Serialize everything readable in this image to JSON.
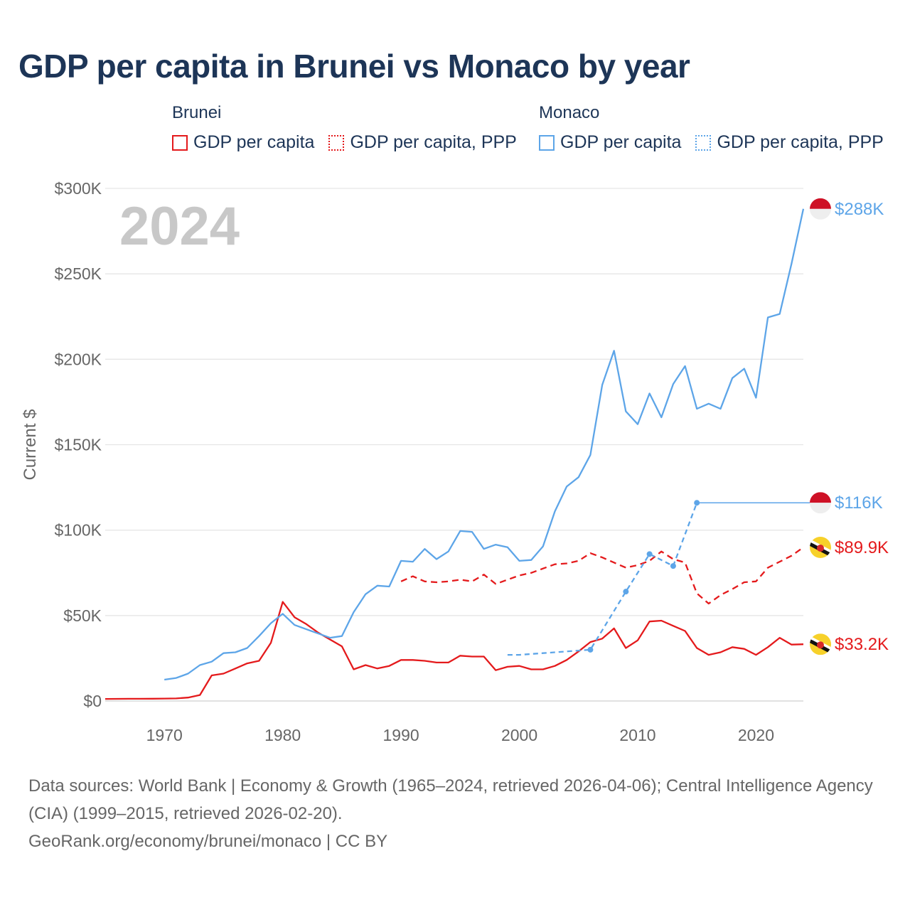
{
  "title": "GDP per capita in Brunei vs Monaco by year",
  "legend": {
    "groups": [
      {
        "country": "Brunei",
        "items": [
          {
            "label": "GDP per capita",
            "color": "#e41a1c",
            "style": "solid"
          },
          {
            "label": "GDP per capita, PPP",
            "color": "#e41a1c",
            "style": "dotted"
          }
        ]
      },
      {
        "country": "Monaco",
        "items": [
          {
            "label": "GDP per capita",
            "color": "#5da5e8",
            "style": "solid"
          },
          {
            "label": "GDP per capita, PPP",
            "color": "#5da5e8",
            "style": "dotted"
          }
        ]
      }
    ]
  },
  "colors": {
    "brunei": "#e41a1c",
    "monaco": "#5da5e8",
    "grid": "#e6e6e6",
    "text": "#1d3557",
    "axis": "#666666",
    "year_watermark": "#c8c8c8"
  },
  "footer": {
    "line1": "Data sources: World Bank | Economy & Growth (1965–2024, retrieved 2026-04-06); Central Intelligence Agency (CIA) (1999–2015, retrieved 2026-02-20).",
    "line2": "GeoRank.org/economy/brunei/monaco | CC BY"
  },
  "chart_data": {
    "type": "line",
    "year_watermark": "2024",
    "ylabel": "Current $",
    "xlabel": "",
    "xlim": [
      1965,
      2024
    ],
    "ylim": [
      0,
      300000
    ],
    "x_ticks": [
      1970,
      1980,
      1990,
      2000,
      2010,
      2020
    ],
    "y_ticks": [
      0,
      50000,
      100000,
      150000,
      200000,
      250000,
      300000
    ],
    "y_tick_labels": [
      "$0",
      "$50K",
      "$100K",
      "$150K",
      "$200K",
      "$250K",
      "$300K"
    ],
    "series": [
      {
        "name": "Brunei GDP per capita",
        "country": "Brunei",
        "color": "#e41a1c",
        "dash": "solid",
        "end_label": "$33.2K",
        "end_value": 33200,
        "flag": "brunei-flag-icon",
        "x": [
          1965,
          1966,
          1967,
          1968,
          1969,
          1970,
          1971,
          1972,
          1973,
          1974,
          1975,
          1976,
          1977,
          1978,
          1979,
          1980,
          1981,
          1982,
          1983,
          1984,
          1985,
          1986,
          1987,
          1988,
          1989,
          1990,
          1991,
          1992,
          1993,
          1994,
          1995,
          1996,
          1997,
          1998,
          1999,
          2000,
          2001,
          2002,
          2003,
          2004,
          2005,
          2006,
          2007,
          2008,
          2009,
          2010,
          2011,
          2012,
          2013,
          2014,
          2015,
          2016,
          2017,
          2018,
          2019,
          2020,
          2021,
          2022,
          2023,
          2024
        ],
        "values": [
          1200,
          1250,
          1300,
          1300,
          1350,
          1400,
          1500,
          2000,
          3500,
          15000,
          16000,
          19000,
          22000,
          23500,
          34000,
          58000,
          49000,
          45000,
          40000,
          36000,
          32000,
          18500,
          21000,
          19000,
          20500,
          24000,
          24000,
          23500,
          22500,
          22500,
          26500,
          26000,
          26000,
          18000,
          20000,
          20500,
          18500,
          18500,
          20500,
          24000,
          29000,
          34500,
          36500,
          42500,
          31000,
          35500,
          46500,
          47000,
          44000,
          41000,
          31000,
          27000,
          28500,
          31500,
          30500,
          27000,
          31500,
          37000,
          33000,
          33200
        ]
      },
      {
        "name": "Brunei GDP per capita, PPP",
        "country": "Brunei",
        "color": "#e41a1c",
        "dash": "dashed",
        "end_label": "$89.9K",
        "end_value": 89900,
        "flag": "brunei-flag-icon",
        "x": [
          1990,
          1991,
          1992,
          1993,
          1994,
          1995,
          1996,
          1997,
          1998,
          1999,
          2000,
          2001,
          2002,
          2003,
          2004,
          2005,
          2006,
          2007,
          2008,
          2009,
          2010,
          2011,
          2012,
          2013,
          2014,
          2015,
          2016,
          2017,
          2018,
          2019,
          2020,
          2021,
          2022,
          2023,
          2024
        ],
        "values": [
          70000,
          73000,
          70000,
          69500,
          70000,
          71000,
          70000,
          74000,
          68500,
          71000,
          73500,
          75000,
          77500,
          80000,
          80500,
          82000,
          86500,
          84000,
          81000,
          78000,
          79500,
          82000,
          87500,
          83000,
          81000,
          63000,
          57000,
          62000,
          65500,
          69500,
          70000,
          78000,
          81500,
          85000,
          89900
        ]
      },
      {
        "name": "Monaco GDP per capita",
        "country": "Monaco",
        "color": "#5da5e8",
        "dash": "solid",
        "end_label": "$288K",
        "end_value": 288000,
        "flag": "monaco-flag-icon",
        "x": [
          1970,
          1971,
          1972,
          1973,
          1974,
          1975,
          1976,
          1977,
          1978,
          1979,
          1980,
          1981,
          1982,
          1983,
          1984,
          1985,
          1986,
          1987,
          1988,
          1989,
          1990,
          1991,
          1992,
          1993,
          1994,
          1995,
          1996,
          1997,
          1998,
          1999,
          2000,
          2001,
          2002,
          2003,
          2004,
          2005,
          2006,
          2007,
          2008,
          2009,
          2010,
          2011,
          2012,
          2013,
          2014,
          2015,
          2016,
          2017,
          2018,
          2019,
          2020,
          2021,
          2022,
          2023,
          2024
        ],
        "values": [
          12500,
          13500,
          16000,
          21000,
          23000,
          28000,
          28500,
          31000,
          38000,
          45500,
          51000,
          44500,
          42000,
          39500,
          37000,
          38000,
          52000,
          62500,
          67500,
          67000,
          82000,
          81500,
          89000,
          83000,
          87500,
          99500,
          99000,
          89000,
          91500,
          90000,
          82000,
          82500,
          90500,
          111000,
          125500,
          131000,
          144000,
          185000,
          205000,
          169500,
          162000,
          180000,
          166000,
          185500,
          196000,
          171000,
          174000,
          171000,
          189000,
          194500,
          177500,
          224500,
          226500,
          256000,
          288000
        ]
      },
      {
        "name": "Monaco GDP per capita, PPP",
        "country": "Monaco",
        "color": "#5da5e8",
        "dash": "dotted",
        "end_label": "$116K",
        "end_value": 116000,
        "flag": "monaco-flag-icon",
        "x": [
          1999,
          2000,
          2001,
          2002,
          2003,
          2004,
          2005,
          2006,
          2009,
          2011,
          2013,
          2015
        ],
        "values": [
          27000,
          27000,
          27500,
          28000,
          28500,
          29000,
          29500,
          30000,
          64000,
          86000,
          79000,
          116000
        ],
        "markers": [
          2006,
          2009,
          2011,
          2013,
          2015
        ],
        "carried_forward_to": 2024
      }
    ]
  }
}
